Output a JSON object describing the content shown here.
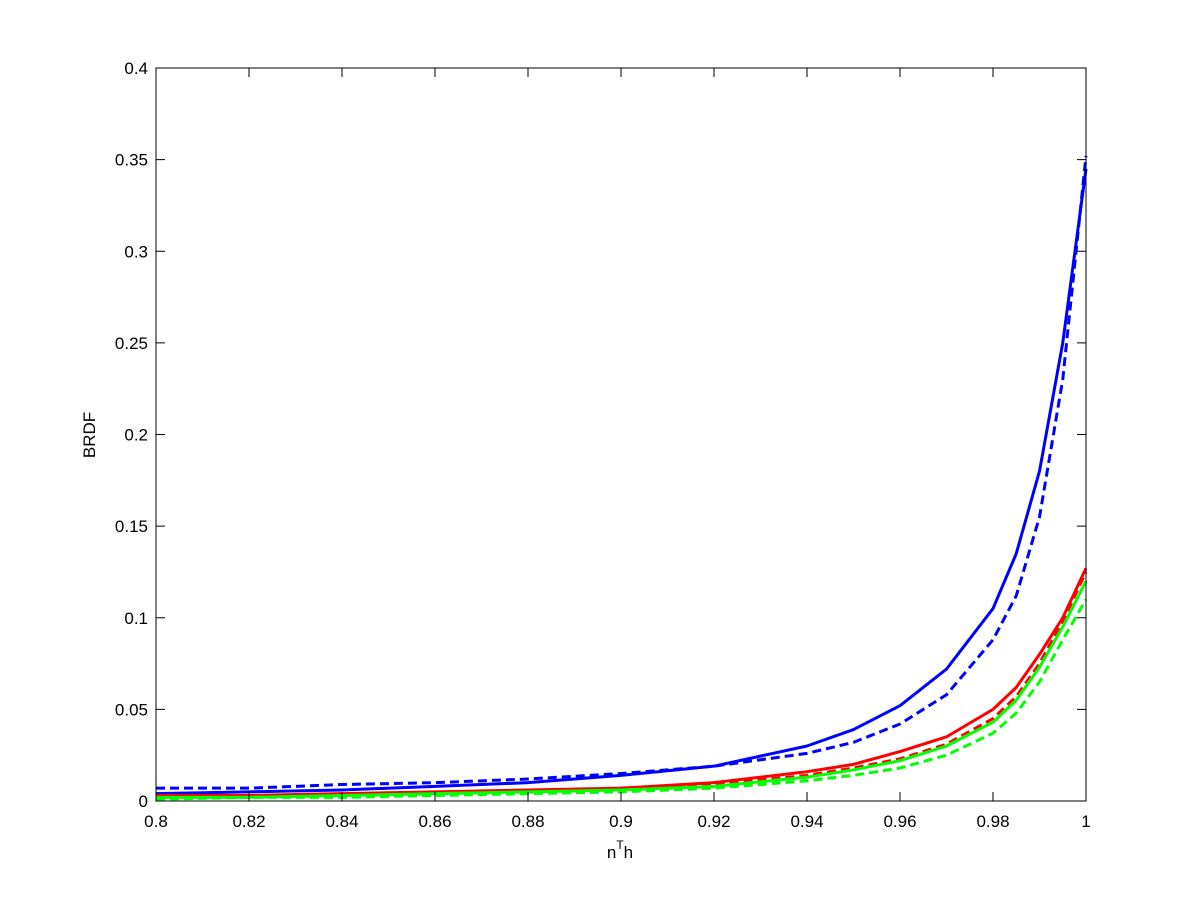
{
  "chart_data": {
    "type": "line",
    "xlabel": [
      "n",
      "T",
      "h"
    ],
    "ylabel": "BRDF",
    "x": [
      0.8,
      0.82,
      0.84,
      0.86,
      0.88,
      0.9,
      0.92,
      0.94,
      0.95,
      0.96,
      0.97,
      0.98,
      0.985,
      0.99,
      0.995,
      1.0
    ],
    "series": [
      {
        "color": "#0000ff",
        "dashed": false,
        "values": [
          0.004,
          0.005,
          0.006,
          0.008,
          0.01,
          0.014,
          0.019,
          0.03,
          0.039,
          0.052,
          0.072,
          0.105,
          0.135,
          0.18,
          0.25,
          0.345
        ]
      },
      {
        "color": "#0000ff",
        "dashed": true,
        "values": [
          0.007,
          0.007,
          0.009,
          0.01,
          0.012,
          0.015,
          0.019,
          0.026,
          0.032,
          0.042,
          0.058,
          0.088,
          0.112,
          0.155,
          0.23,
          0.352
        ]
      },
      {
        "color": "#ff0000",
        "dashed": false,
        "values": [
          0.003,
          0.003,
          0.004,
          0.005,
          0.006,
          0.007,
          0.01,
          0.016,
          0.02,
          0.027,
          0.035,
          0.05,
          0.062,
          0.08,
          0.1,
          0.127
        ]
      },
      {
        "color": "#ff0000",
        "dashed": true,
        "values": [
          0.002,
          0.003,
          0.003,
          0.004,
          0.005,
          0.006,
          0.009,
          0.014,
          0.018,
          0.023,
          0.031,
          0.045,
          0.057,
          0.075,
          0.098,
          0.125
        ]
      },
      {
        "color": "#00ff00",
        "dashed": false,
        "values": [
          0.002,
          0.002,
          0.003,
          0.004,
          0.005,
          0.006,
          0.008,
          0.013,
          0.017,
          0.022,
          0.03,
          0.043,
          0.055,
          0.073,
          0.095,
          0.12
        ]
      },
      {
        "color": "#00ff00",
        "dashed": true,
        "values": [
          0.001,
          0.002,
          0.002,
          0.003,
          0.004,
          0.005,
          0.007,
          0.011,
          0.014,
          0.018,
          0.025,
          0.037,
          0.048,
          0.065,
          0.088,
          0.11
        ]
      }
    ],
    "xlim": [
      0.8,
      1
    ],
    "xticks": [
      0.8,
      0.82,
      0.84,
      0.86,
      0.88,
      0.9,
      0.92,
      0.94,
      0.96,
      0.98,
      1
    ],
    "ylim": [
      0,
      0.4
    ],
    "yticks": [
      0,
      0.05,
      0.1,
      0.15,
      0.2,
      0.25,
      0.3,
      0.35,
      0.4
    ],
    "grid": false
  }
}
